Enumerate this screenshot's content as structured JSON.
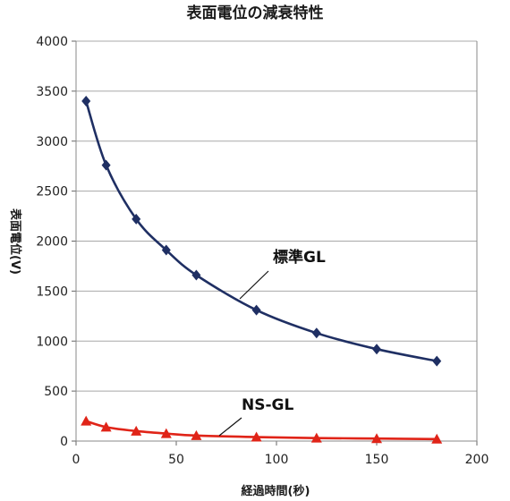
{
  "chart_data": {
    "type": "line",
    "title": "表面電位の減衰特性",
    "xlabel": "経過時間(秒)",
    "ylabel": "表面電位(V)",
    "xlim": [
      0,
      200
    ],
    "ylim": [
      0,
      4000
    ],
    "xticks": [
      0,
      50,
      100,
      150,
      200
    ],
    "yticks": [
      0,
      500,
      1000,
      1500,
      2000,
      2500,
      3000,
      3500,
      4000
    ],
    "grid": true,
    "legend": "none",
    "series": [
      {
        "name": "標準GL",
        "color": "#1f2f63",
        "marker": "diamond",
        "x": [
          5,
          15,
          30,
          45,
          60,
          90,
          120,
          150,
          180
        ],
        "y": [
          3400,
          2760,
          2220,
          1910,
          1660,
          1310,
          1080,
          920,
          800
        ]
      },
      {
        "name": "NS-GL",
        "color": "#e02418",
        "marker": "triangle",
        "x": [
          5,
          15,
          30,
          45,
          60,
          90,
          120,
          150,
          180
        ],
        "y": [
          200,
          140,
          100,
          75,
          55,
          40,
          30,
          25,
          20
        ]
      }
    ]
  }
}
